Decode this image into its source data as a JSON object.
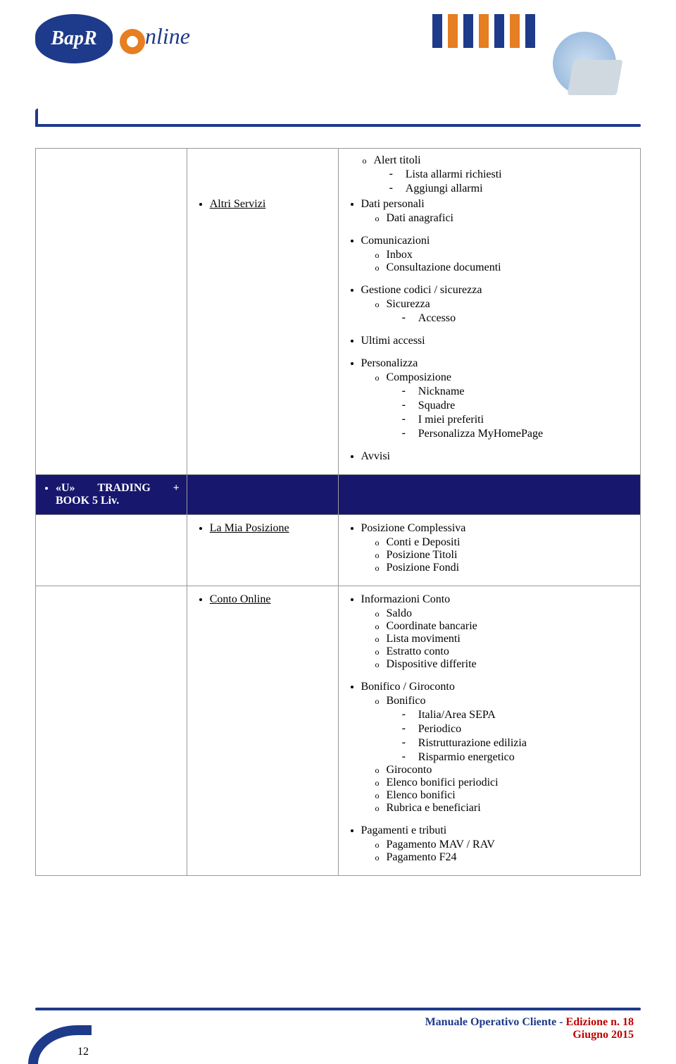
{
  "header": {
    "logo_text": "BapR",
    "online_text": "nline",
    "stripe_colors": [
      "#1e3a8a",
      "#e67e22",
      "#1e3a8a",
      "#e67e22",
      "#1e3a8a",
      "#e67e22",
      "#1e3a8a"
    ]
  },
  "table": {
    "row1": {
      "col1": "",
      "col2": "",
      "col3": {
        "block1": {
          "sub": [
            {
              "label": "Alert titoli",
              "dash": [
                "Lista allarmi richiesti",
                "Aggiungi allarmi"
              ]
            }
          ]
        },
        "altri_servizi_label": "Altri Servizi",
        "dati_personali": {
          "title": "Dati personali",
          "sub": [
            "Dati anagrafici"
          ]
        },
        "comunicazioni": {
          "title": "Comunicazioni",
          "sub": [
            "Inbox",
            "Consultazione documenti"
          ]
        },
        "gestione": {
          "title": "Gestione codici / sicurezza",
          "sub": [
            {
              "label": "Sicurezza",
              "dash": [
                "Accesso"
              ]
            }
          ]
        },
        "ultimi_accessi": "Ultimi accessi",
        "personalizza": {
          "title": "Personalizza",
          "sub": [
            {
              "label": "Composizione",
              "dash": [
                "Nickname",
                "Squadre",
                "I miei preferiti",
                "Personalizza MyHomePage"
              ]
            }
          ]
        },
        "avvisi": "Avvisi"
      }
    },
    "row2": {
      "title_parts": [
        "«U»",
        "TRADING",
        "+"
      ],
      "title_line2": "BOOK 5 Liv."
    },
    "row3": {
      "col2_1": "La Mia Posizione",
      "col3_1": {
        "title": "Posizione Complessiva",
        "sub": [
          "Conti e Depositi",
          "Posizione Titoli",
          "Posizione Fondi"
        ]
      },
      "col2_2": "Conto Online",
      "col3_2": {
        "info_conto": {
          "title": "Informazioni Conto",
          "sub": [
            "Saldo",
            "Coordinate bancarie",
            "Lista movimenti",
            "Estratto conto",
            "Dispositive differite"
          ]
        },
        "bonifico": {
          "title": "Bonifico / Giroconto",
          "sub": [
            {
              "label": "Bonifico",
              "dash": [
                "Italia/Area SEPA",
                "Periodico",
                "Ristrutturazione edilizia",
                "Risparmio energetico"
              ]
            },
            {
              "label": "Giroconto"
            },
            {
              "label": "Elenco bonifici periodici"
            },
            {
              "label": "Elenco bonifici"
            },
            {
              "label": "Rubrica e beneficiari"
            }
          ]
        },
        "pagamenti": {
          "title": "Pagamenti e tributi",
          "sub": [
            "Pagamento MAV / RAV",
            "Pagamento F24"
          ]
        }
      }
    }
  },
  "footer": {
    "manual": "Manuale Operativo Cliente",
    "sep": "   -   ",
    "edition": "Edizione n. 18",
    "date": "Giugno 2015",
    "page": "12"
  }
}
